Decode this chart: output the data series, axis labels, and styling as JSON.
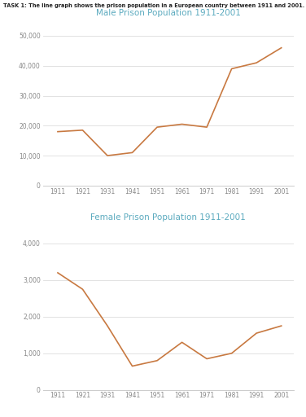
{
  "task_label": "TASK 1: The line graph shows the prison population in a European country between 1911 and 2001.",
  "years": [
    1911,
    1921,
    1931,
    1941,
    1951,
    1961,
    1971,
    1981,
    1991,
    2001
  ],
  "male_values": [
    18000,
    18500,
    10000,
    11000,
    19500,
    20500,
    19500,
    39000,
    41000,
    46000
  ],
  "female_values": [
    3200,
    2750,
    1750,
    650,
    800,
    1300,
    850,
    1000,
    1550,
    1750
  ],
  "male_title": "Male Prison Population 1911-2001",
  "female_title": "Female Prison Population 1911-2001",
  "line_color": "#C87941",
  "title_color": "#5BAABF",
  "task_color": "#222222",
  "male_ylim": [
    0,
    55000
  ],
  "male_yticks": [
    0,
    10000,
    20000,
    30000,
    40000,
    50000
  ],
  "female_ylim": [
    0,
    4500
  ],
  "female_yticks": [
    0,
    1000,
    2000,
    3000,
    4000
  ],
  "bg_color": "#ffffff",
  "grid_color": "#dddddd",
  "tick_label_color": "#888888",
  "spine_color": "#cccccc"
}
